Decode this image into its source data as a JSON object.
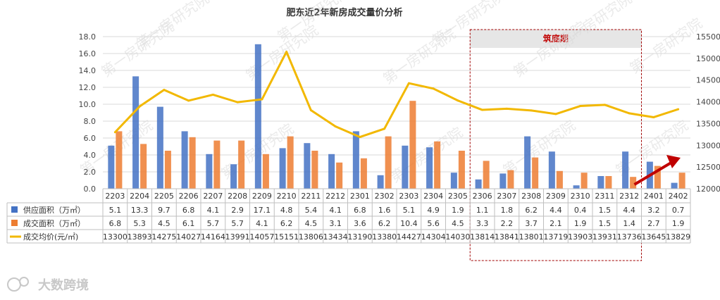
{
  "chart_data": {
    "type": "bar",
    "title": "肥东近2年新房成交量价分析",
    "categories": [
      "2203",
      "2204",
      "2205",
      "2206",
      "2207",
      "2208",
      "2209",
      "2210",
      "2211",
      "2212",
      "2301",
      "2302",
      "2303",
      "2304",
      "2305",
      "2306",
      "2307",
      "2308",
      "2309",
      "2310",
      "2311",
      "2312",
      "2401",
      "2402"
    ],
    "series": [
      {
        "name": "供应面积（万㎡）",
        "type": "bar",
        "axis": "left",
        "color": "#4472c4",
        "values": [
          5.1,
          13.3,
          9.7,
          6.8,
          4.1,
          2.9,
          17.1,
          4.8,
          5.4,
          4.1,
          6.8,
          1.6,
          5.1,
          4.9,
          1.9,
          1.1,
          1.8,
          6.2,
          4.4,
          0.4,
          1.5,
          4.4,
          3.2,
          0.7
        ]
      },
      {
        "name": "成交面积（万㎡）",
        "type": "bar",
        "axis": "left",
        "color": "#ed7d31",
        "values": [
          6.8,
          5.3,
          4.5,
          6.1,
          5.7,
          5.7,
          4.1,
          6.2,
          4.5,
          3.1,
          3.6,
          6.2,
          10.4,
          5.6,
          4.5,
          3.3,
          2.2,
          3.7,
          2.1,
          1.9,
          1.5,
          1.4,
          2.7,
          1.9
        ]
      },
      {
        "name": "成交均价(元/㎡)",
        "type": "line",
        "axis": "right",
        "color": "#f2b800",
        "values": [
          13300,
          13893,
          14275,
          14027,
          14164,
          13991,
          14057,
          15151,
          13806,
          13434,
          13190,
          13380,
          14427,
          14304,
          14030,
          13814,
          13841,
          13801,
          13719,
          13903,
          13931,
          13736,
          13645,
          13829
        ]
      }
    ],
    "left_axis": {
      "min": 0,
      "max": 18,
      "step": 2,
      "ticks": [
        "0.0",
        "2.0",
        "4.0",
        "6.0",
        "8.0",
        "10.0",
        "12.0",
        "14.0",
        "16.0",
        "18.0"
      ]
    },
    "right_axis": {
      "min": 12000,
      "max": 15500,
      "step": 500,
      "ticks": [
        "12000",
        "12500",
        "13000",
        "13500",
        "14000",
        "14500",
        "15000",
        "15500"
      ]
    },
    "annotation": {
      "label": "筑底期",
      "from": "2306",
      "to": "2312"
    },
    "data_table": true
  },
  "watermark": "第一房研究院",
  "brand": "大数跨境",
  "colors": {
    "highlight_border": "#a00000",
    "highlight_fill": "#e6e6e6",
    "highlight_text": "#c00000",
    "arrow": "#c00000",
    "grid": "#d9d9d9"
  }
}
